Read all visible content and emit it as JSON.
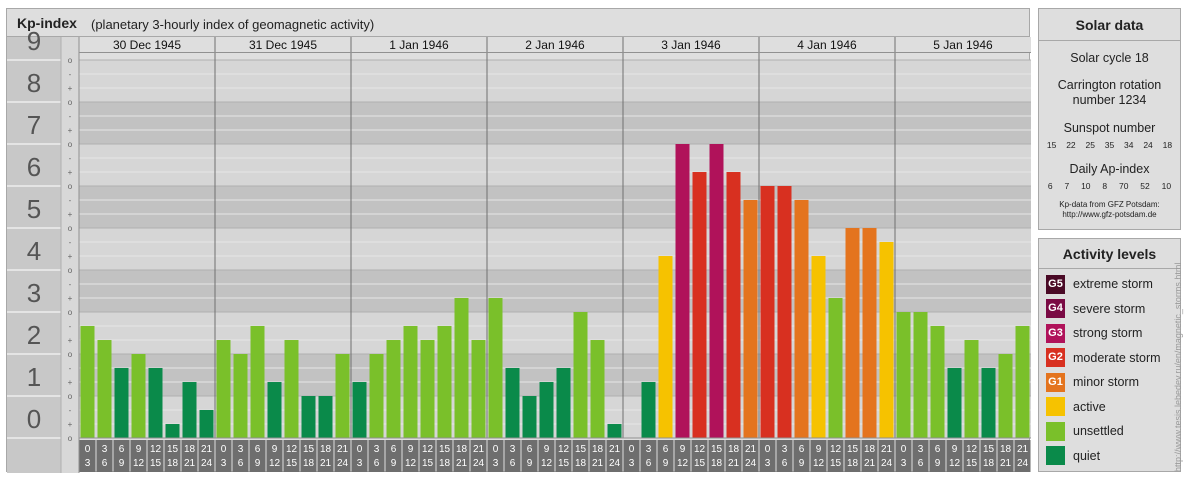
{
  "header": {
    "title": "Kp-index",
    "subtitle": "(planetary 3-hourly index of geomagnetic activity)"
  },
  "solar": {
    "heading": "Solar data",
    "cycle": "Solar cycle 18",
    "carrington_line1": "Carrington rotation",
    "carrington_line2": "number 1234",
    "sunspot_label": "Sunspot number",
    "sunspot_values": [
      "15",
      "22",
      "25",
      "35",
      "34",
      "24",
      "18"
    ],
    "ap_label": "Daily Ap-index",
    "ap_values": [
      "6",
      "7",
      "10",
      "8",
      "70",
      "52",
      "10"
    ],
    "source_line1": "Kp-data from GFZ Potsdam:",
    "source_line2": "http://www.gfz-potsdam.de"
  },
  "activity": {
    "heading": "Activity levels",
    "levels": [
      {
        "badge": "G5",
        "label": "extreme storm",
        "color": "#4a0a26"
      },
      {
        "badge": "G4",
        "label": "severe storm",
        "color": "#7a0a44"
      },
      {
        "badge": "G3",
        "label": "strong storm",
        "color": "#b0125a"
      },
      {
        "badge": "G2",
        "label": "moderate storm",
        "color": "#d83020"
      },
      {
        "badge": "G1",
        "label": "minor storm",
        "color": "#e4741e"
      },
      {
        "badge": "",
        "label": "active",
        "color": "#f6c200"
      },
      {
        "badge": "",
        "label": "unsettled",
        "color": "#7ac02a"
      },
      {
        "badge": "",
        "label": "quiet",
        "color": "#0a8a4a"
      }
    ]
  },
  "watermark": "http://www.tesis.lebedev.ru/en/magnetic_storms.html",
  "chart_data": {
    "type": "bar",
    "title": "Kp-index",
    "ylim": [
      0,
      9
    ],
    "y_ticks": [
      "0",
      "1",
      "2",
      "3",
      "4",
      "5",
      "6",
      "7",
      "8",
      "9"
    ],
    "y_subticks": [
      "+",
      "o",
      "-"
    ],
    "days": [
      "30 Dec 1945",
      "31 Dec 1945",
      "1 Jan 1946",
      "2 Jan 1946",
      "3 Jan 1946",
      "4 Jan 1946",
      "5 Jan 1946"
    ],
    "hour_labels": [
      [
        "0",
        "3"
      ],
      [
        "3",
        "6"
      ],
      [
        "6",
        "9"
      ],
      [
        "9",
        "12"
      ],
      [
        "12",
        "15"
      ],
      [
        "15",
        "18"
      ],
      [
        "18",
        "21"
      ],
      [
        "21",
        "24"
      ]
    ],
    "values": [
      [
        2.667,
        2.333,
        1.667,
        2.0,
        1.667,
        0.333,
        1.333,
        0.667
      ],
      [
        2.333,
        2.0,
        2.667,
        1.333,
        2.333,
        1.0,
        1.0,
        2.0
      ],
      [
        1.333,
        2.0,
        2.333,
        2.667,
        2.333,
        2.667,
        3.333,
        2.333
      ],
      [
        3.333,
        1.667,
        1.0,
        1.333,
        1.667,
        3.0,
        2.333,
        0.333
      ],
      [
        0.0,
        1.333,
        4.333,
        7.0,
        6.333,
        7.0,
        6.333,
        5.667
      ],
      [
        6.0,
        6.0,
        5.667,
        4.333,
        3.333,
        5.0,
        5.0,
        4.667
      ],
      [
        3.0,
        3.0,
        2.667,
        1.667,
        2.333,
        1.667,
        2.0,
        2.667
      ]
    ],
    "level_colors": {
      "quiet": "#0a8a4a",
      "unsettled": "#7ac02a",
      "active": "#f6c200",
      "G1": "#e4741e",
      "G2": "#d83020",
      "G3": "#b0125a",
      "G4": "#7a0a44",
      "G5": "#4a0a26"
    }
  }
}
